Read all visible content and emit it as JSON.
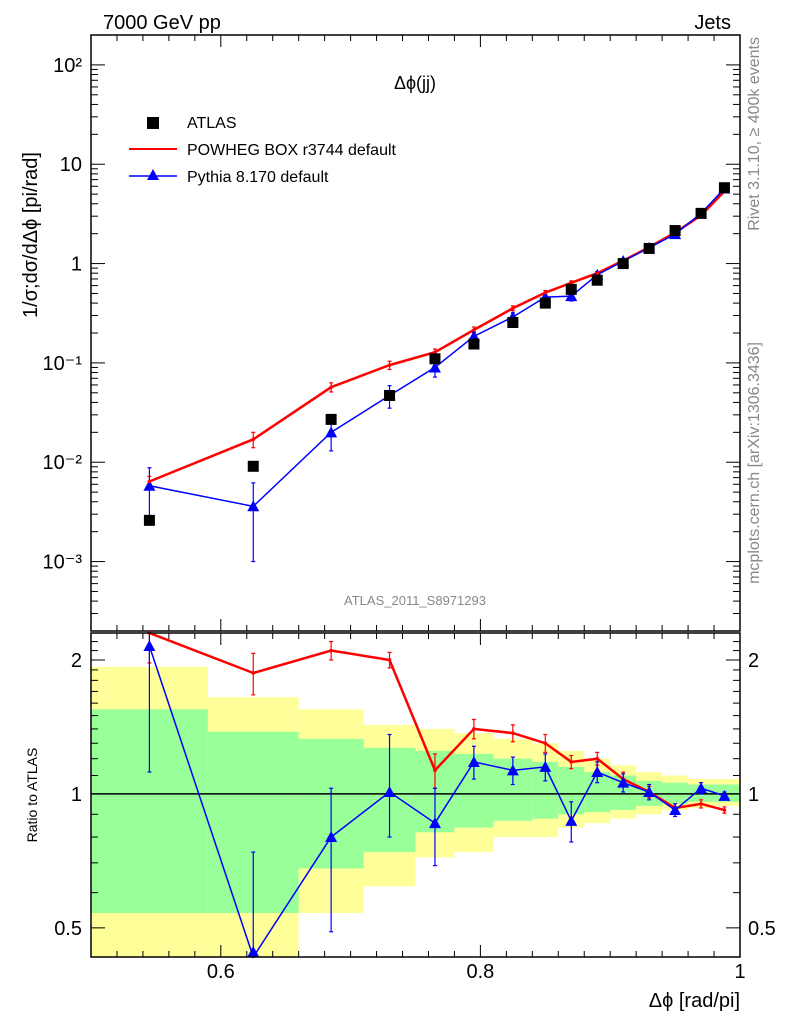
{
  "header": {
    "left": "7000 GeV pp",
    "right": "Jets"
  },
  "side_texts": {
    "rivet": "Rivet 3.1.10, ≥ 400k events",
    "mcplots": "mcplots.cern.ch [arXiv:1306.3436]"
  },
  "chart_data": [
    {
      "type": "scatter",
      "title": "Δϕ(jj)",
      "xlabel": "Δϕ [rad/pi]",
      "ylabel": "1/σ;dσ/dΔϕ [pi/rad]",
      "yscale": "log",
      "xlim": [
        0.5,
        1.0
      ],
      "ylim": [
        0.0002,
        200
      ],
      "xticks": [
        0.6,
        0.8,
        1
      ],
      "xtick_labels": [
        "0.6",
        "0.8",
        "1"
      ],
      "yticks": [
        0.001,
        0.01,
        0.1,
        1,
        10,
        100
      ],
      "ytick_labels": [
        "10⁻³",
        "10⁻²",
        "10⁻¹",
        "1",
        "10",
        "10²"
      ],
      "annotation": "ATLAS_2011_S8971293",
      "legend_position": "top-left",
      "series": [
        {
          "name": "ATLAS",
          "color": "#000000",
          "marker": "square",
          "x": [
            0.545,
            0.625,
            0.685,
            0.73,
            0.765,
            0.795,
            0.825,
            0.85,
            0.87,
            0.89,
            0.91,
            0.93,
            0.95,
            0.97,
            0.988
          ],
          "y": [
            0.0026,
            0.0091,
            0.027,
            0.047,
            0.11,
            0.155,
            0.255,
            0.4,
            0.55,
            0.68,
            1.0,
            1.42,
            2.15,
            3.2,
            5.8
          ]
        },
        {
          "name": "POWHEG BOX r3744 default",
          "color": "#ff0000",
          "marker": "none",
          "x": [
            0.545,
            0.625,
            0.685,
            0.73,
            0.765,
            0.795,
            0.825,
            0.85,
            0.87,
            0.89,
            0.91,
            0.93,
            0.95,
            0.97,
            0.988
          ],
          "y": [
            0.0064,
            0.017,
            0.057,
            0.095,
            0.128,
            0.215,
            0.355,
            0.51,
            0.64,
            0.8,
            1.07,
            1.46,
            2.05,
            3.05,
            5.35
          ],
          "err": [
            0.0008,
            0.003,
            0.006,
            0.009,
            0.01,
            0.015,
            0.02,
            0.025,
            0.03,
            0.03,
            0.04,
            0.05,
            0.06,
            0.08,
            0.1
          ]
        },
        {
          "name": "Pythia 8.170 default",
          "color": "#0000ff",
          "marker": "triangle",
          "x": [
            0.545,
            0.625,
            0.685,
            0.73,
            0.765,
            0.795,
            0.825,
            0.85,
            0.87,
            0.89,
            0.91,
            0.93,
            0.95,
            0.97,
            0.988
          ],
          "y": [
            0.0058,
            0.0036,
            0.02,
            0.047,
            0.09,
            0.185,
            0.29,
            0.46,
            0.47,
            0.77,
            1.06,
            1.44,
            1.98,
            3.2,
            5.7
          ],
          "err": [
            0.003,
            0.0026,
            0.007,
            0.012,
            0.018,
            0.02,
            0.03,
            0.03,
            0.05,
            0.05,
            0.04,
            0.05,
            0.06,
            0.09,
            0.12
          ]
        }
      ]
    },
    {
      "type": "line",
      "ylabel": "Ratio to ATLAS",
      "xlabel": "Δϕ [rad/pi]",
      "xlim": [
        0.5,
        1.0
      ],
      "ylim": [
        0.43,
        2.3
      ],
      "yticks": [
        0.5,
        1,
        2
      ],
      "ytick_labels": [
        "0.5",
        "1",
        "2"
      ],
      "xticks": [
        0.6,
        0.8,
        1
      ],
      "xtick_labels": [
        "0.6",
        "0.8",
        "1"
      ],
      "reference_line": 1,
      "uncertainty_bands": {
        "bins": [
          [
            0.5,
            0.59
          ],
          [
            0.59,
            0.66
          ],
          [
            0.66,
            0.71
          ],
          [
            0.71,
            0.75
          ],
          [
            0.75,
            0.78
          ],
          [
            0.78,
            0.81
          ],
          [
            0.81,
            0.84
          ],
          [
            0.84,
            0.86
          ],
          [
            0.86,
            0.88
          ],
          [
            0.88,
            0.9
          ],
          [
            0.9,
            0.92
          ],
          [
            0.92,
            0.94
          ],
          [
            0.94,
            0.96
          ],
          [
            0.96,
            0.98
          ],
          [
            0.98,
            1.0
          ]
        ],
        "yellow_color": "#ffff99",
        "green_color": "#99ff99",
        "yellow_low": [
          0.38,
          0.38,
          0.54,
          0.62,
          0.72,
          0.74,
          0.8,
          0.8,
          0.84,
          0.86,
          0.88,
          0.9,
          0.92,
          0.93,
          0.94
        ],
        "yellow_high": [
          1.93,
          1.65,
          1.55,
          1.43,
          1.4,
          1.37,
          1.33,
          1.3,
          1.25,
          1.2,
          1.16,
          1.12,
          1.1,
          1.08,
          1.08
        ],
        "green_low": [
          0.54,
          0.54,
          0.68,
          0.74,
          0.82,
          0.84,
          0.87,
          0.88,
          0.9,
          0.91,
          0.92,
          0.94,
          0.95,
          0.96,
          0.96
        ],
        "green_high": [
          1.55,
          1.38,
          1.33,
          1.27,
          1.25,
          1.23,
          1.2,
          1.18,
          1.15,
          1.12,
          1.1,
          1.07,
          1.06,
          1.05,
          1.05
        ]
      },
      "series": [
        {
          "name": "POWHEG BOX r3744 default",
          "color": "#ff0000",
          "x": [
            0.545,
            0.625,
            0.685,
            0.73,
            0.765,
            0.795,
            0.825,
            0.85,
            0.87,
            0.89,
            0.91,
            0.93,
            0.95,
            0.97,
            0.988
          ],
          "y": [
            2.3,
            1.87,
            2.1,
            2.0,
            1.13,
            1.4,
            1.37,
            1.3,
            1.18,
            1.2,
            1.08,
            1.01,
            0.93,
            0.95,
            0.92
          ],
          "err_low": [
            0.33,
            0.2,
            0.1,
            0.08,
            0.1,
            0.07,
            0.06,
            0.06,
            0.04,
            0.04,
            0.04,
            0.03,
            0.02,
            0.02,
            0.015
          ],
          "err_high": [
            0.3,
            0.2,
            0.1,
            0.08,
            0.1,
            0.07,
            0.06,
            0.06,
            0.04,
            0.04,
            0.04,
            0.03,
            0.02,
            0.02,
            0.015
          ]
        },
        {
          "name": "Pythia 8.170 default",
          "color": "#0000ff",
          "x": [
            0.545,
            0.625,
            0.685,
            0.73,
            0.765,
            0.795,
            0.825,
            0.85,
            0.87,
            0.89,
            0.91,
            0.93,
            0.95,
            0.97,
            0.988
          ],
          "y": [
            2.15,
            0.43,
            0.8,
            1.01,
            0.86,
            1.18,
            1.13,
            1.15,
            0.87,
            1.12,
            1.06,
            1.01,
            0.92,
            1.03,
            0.99
          ],
          "err_low": [
            1.03,
            0.31,
            0.31,
            0.21,
            0.17,
            0.1,
            0.08,
            0.08,
            0.09,
            0.06,
            0.05,
            0.04,
            0.03,
            0.03,
            0.02
          ],
          "err_high": [
            0.7,
            0.31,
            0.23,
            0.35,
            0.17,
            0.1,
            0.08,
            0.08,
            0.09,
            0.06,
            0.05,
            0.04,
            0.03,
            0.03,
            0.02
          ]
        }
      ]
    }
  ]
}
